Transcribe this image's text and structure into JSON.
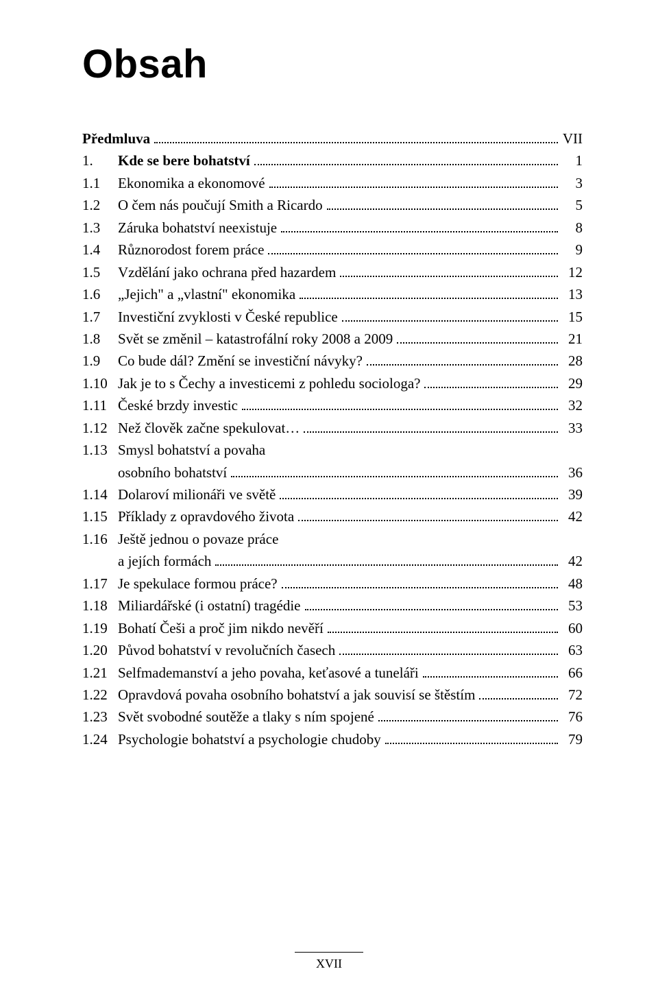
{
  "title": "Obsah",
  "footer": "XVII",
  "entries": [
    {
      "num": "",
      "label": "Předmluva",
      "page": "VII",
      "bold": true
    },
    {
      "num": "1.",
      "label": "Kde se bere bohatství",
      "page": "1",
      "bold": true
    },
    {
      "num": "1.1",
      "label": "Ekonomika a ekonomové",
      "page": "3"
    },
    {
      "num": "1.2",
      "label": "O čem nás poučují Smith a Ricardo",
      "page": "5"
    },
    {
      "num": "1.3",
      "label": "Záruka bohatství neexistuje",
      "page": "8"
    },
    {
      "num": "1.4",
      "label": "Různorodost forem práce",
      "page": "9"
    },
    {
      "num": "1.5",
      "label": "Vzdělání jako ochrana před hazardem",
      "page": "12"
    },
    {
      "num": "1.6",
      "label": "„Jejich\" a „vlastní\" ekonomika",
      "page": "13"
    },
    {
      "num": "1.7",
      "label": "Investiční zvyklosti v České republice",
      "page": "15"
    },
    {
      "num": "1.8",
      "label": "Svět se změnil – katastrofální roky 2008 a 2009",
      "page": "21"
    },
    {
      "num": "1.9",
      "label": "Co bude dál? Změní se investiční návyky?",
      "page": "28"
    },
    {
      "num": "1.10",
      "label": "Jak je to s Čechy a investicemi z pohledu sociologa?",
      "page": "29"
    },
    {
      "num": "1.11",
      "label": "České brzdy investic",
      "page": "32"
    },
    {
      "num": "1.12",
      "label": "Než člověk začne spekulovat…",
      "page": "33"
    },
    {
      "num": "1.13",
      "label": "Smysl bohatství a povaha",
      "cont": "osobního bohatství",
      "page": "36"
    },
    {
      "num": "1.14",
      "label": "Dolaroví milionáři ve světě",
      "page": "39"
    },
    {
      "num": "1.15",
      "label": "Příklady z opravdového života",
      "page": "42"
    },
    {
      "num": "1.16",
      "label": "Ještě jednou o povaze práce",
      "cont": "a jejích formách",
      "page": "42"
    },
    {
      "num": "1.17",
      "label": "Je spekulace formou práce?",
      "page": "48"
    },
    {
      "num": "1.18",
      "label": "Miliardářské (i ostatní) tragédie",
      "page": "53"
    },
    {
      "num": "1.19",
      "label": "Bohatí Češi a proč jim nikdo nevěří",
      "page": "60"
    },
    {
      "num": "1.20",
      "label": "Původ bohatství v revolučních časech",
      "page": "63"
    },
    {
      "num": "1.21",
      "label": "Selfmademanství a jeho povaha, keťasové a tuneláři",
      "page": "66"
    },
    {
      "num": "1.22",
      "label": "Opravdová povaha osobního bohatství a jak souvisí se štěstím",
      "page": "72"
    },
    {
      "num": "1.23",
      "label": "Svět svobodné soutěže a tlaky s ním spojené",
      "page": "76"
    },
    {
      "num": "1.24",
      "label": "Psychologie bohatství a psychologie chudoby",
      "page": "79"
    }
  ]
}
